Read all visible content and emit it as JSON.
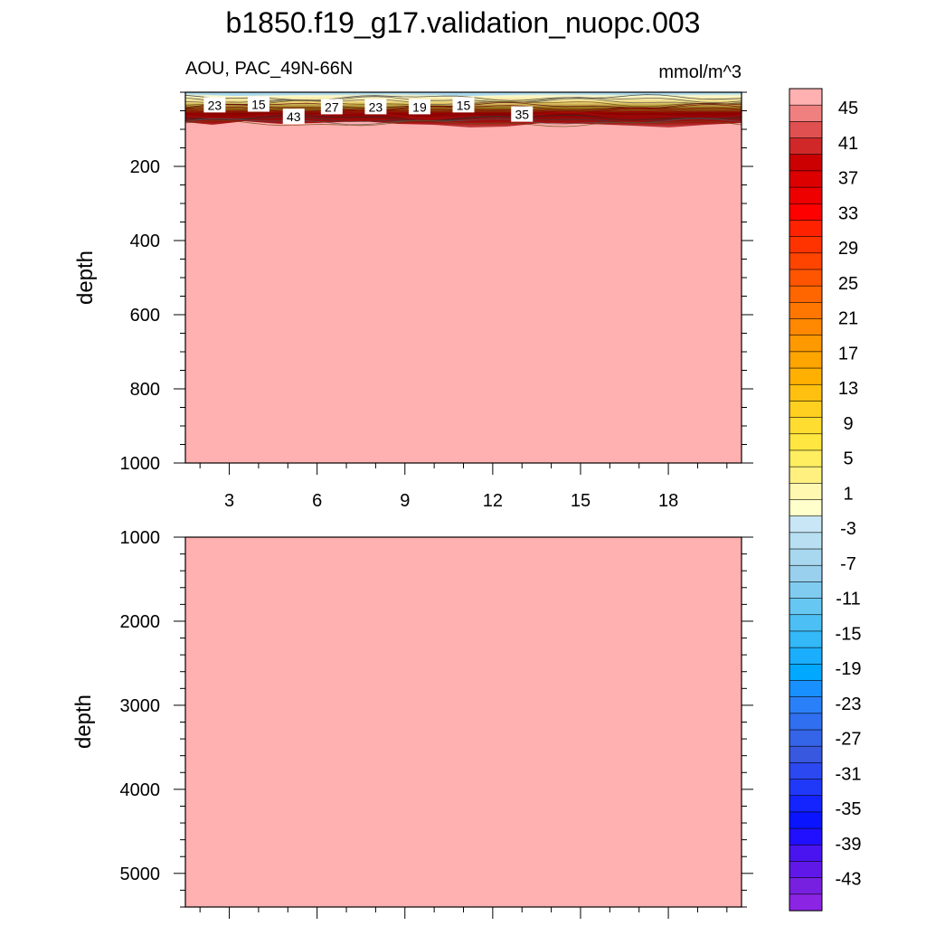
{
  "title": "b1850.f19_g17.validation_nuopc.003",
  "chart_data": [
    {
      "type": "heatmap",
      "panel": "upper",
      "left_title": "AOU, PAC_49N-66N",
      "right_title": "mmol/m^3",
      "ylabel": "depth",
      "ylim": [
        1000,
        0
      ],
      "y_ticks": [
        200,
        400,
        600,
        800,
        1000
      ],
      "x_ticks": [
        3,
        6,
        9,
        12,
        15,
        18
      ],
      "xlim": [
        1.5,
        20.5
      ],
      "fill_color_below_surface_layer": "#FFB0B0",
      "contour_labels": [
        {
          "x": 2.5,
          "depth": 35,
          "value": "23"
        },
        {
          "x": 4.0,
          "depth": 33,
          "value": "15"
        },
        {
          "x": 5.2,
          "depth": 66,
          "value": "43"
        },
        {
          "x": 6.5,
          "depth": 40,
          "value": "27"
        },
        {
          "x": 8.0,
          "depth": 40,
          "value": "23"
        },
        {
          "x": 9.5,
          "depth": 40,
          "value": "19"
        },
        {
          "x": 11.0,
          "depth": 35,
          "value": "15"
        },
        {
          "x": 13.0,
          "depth": 60,
          "value": "35"
        }
      ]
    },
    {
      "type": "heatmap",
      "panel": "lower",
      "ylabel": "depth",
      "ylim": [
        1000,
        5400
      ],
      "y_ticks": [
        1000,
        2000,
        3000,
        4000,
        5000
      ],
      "xlim": [
        1.5,
        20.5
      ],
      "fill_color": "#FFB0B0"
    }
  ],
  "colorbar": {
    "labels": [
      "45",
      "41",
      "37",
      "33",
      "29",
      "25",
      "21",
      "17",
      "13",
      "9",
      "5",
      "1",
      "-3",
      "-7",
      "-11",
      "-15",
      "-19",
      "-23",
      "-27",
      "-31",
      "-35",
      "-39",
      "-43"
    ],
    "colors": [
      "#FFB0B0",
      "#F08080",
      "#E05050",
      "#D02828",
      "#CC0000",
      "#DD0000",
      "#EE0000",
      "#FF0000",
      "#FF2200",
      "#FF3300",
      "#FF4400",
      "#FF5500",
      "#FF6600",
      "#FF7700",
      "#FF8800",
      "#FF9900",
      "#FFA500",
      "#FFB000",
      "#FFC010",
      "#FFD020",
      "#FFDD30",
      "#FFE640",
      "#FFEE60",
      "#FFF080",
      "#FFF8B0",
      "#FFFFCC",
      "#C8E6F5",
      "#B8E0F2",
      "#A8D8F0",
      "#98D0EE",
      "#80CCF0",
      "#66C8F2",
      "#4CC0F4",
      "#33B8F8",
      "#1AAEFC",
      "#00A8FF",
      "#1890FF",
      "#2A80F8",
      "#3070F0",
      "#3464E8",
      "#3858E0",
      "#2C48F0",
      "#2038F8",
      "#1424FF",
      "#0A14FF",
      "#2010FF",
      "#4A14F0",
      "#6018E8",
      "#7820E0",
      "#8C24E4"
    ]
  }
}
